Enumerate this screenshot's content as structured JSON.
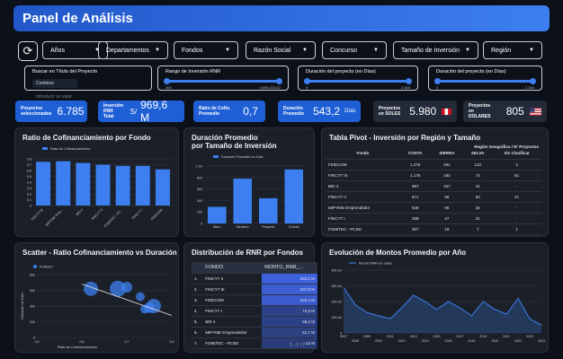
{
  "header": {
    "title": "Panel de Análisis"
  },
  "filters": {
    "dropdowns": [
      "Años",
      "Departamentos",
      "Fondos",
      "Razón Social",
      "Concurso",
      "Tamaño de Inversión",
      "Región"
    ]
  },
  "search": {
    "label": "Buscar en Título del Proyecto",
    "mode": "Contiene",
    "placeholder": "Introducir un valor"
  },
  "ranges": [
    {
      "label": "Rango de Inversión RNR",
      "min": "200",
      "max": "4.866.023,62"
    },
    {
      "label": "Duración del proyecto (en Días)",
      "min": "0",
      "max": "2.340"
    },
    {
      "label": "Duración del proyecto (en Días)",
      "min": "0",
      "max": "2.340"
    }
  ],
  "kpis": [
    {
      "label1": "Proyectos",
      "label2": "seleccionados",
      "value": "6.785"
    },
    {
      "label1": "Inversión",
      "label2": "RNR Total",
      "prefix": "S/",
      "value": "969,6 M"
    },
    {
      "label1": "Ratio de Cofin.",
      "label2": "Promedio",
      "value": "0,7"
    },
    {
      "label1": "Duración",
      "label2": "Promedio",
      "value": "543,2",
      "suffix": "Días"
    },
    {
      "label1": "Proyectos",
      "label2": "en SOLES",
      "value": "5.980"
    },
    {
      "label1": "Proyectos en",
      "label2": "DOLARES",
      "value": "805"
    }
  ],
  "panels": {
    "ratio": {
      "title": "Ratio de Cofinanciamiento por Fondo",
      "legend": "Ratio de Cofinanciamiento"
    },
    "duracion": {
      "title1": "Duración Promedio",
      "title2": "por Tamaño de Inversión",
      "legend": "Duración Promedio en Días"
    },
    "pivot": {
      "title": "Tabla Pivot - Inversión por Región y Tamaño",
      "subheader": "Región Geográfica / Nº Proyectos"
    },
    "scatter": {
      "title": "Scatter - Ratio Cofinanciamiento vs Duración",
      "legend": "FONDO"
    },
    "rnr": {
      "title": "Distribución de RNR por Fondos",
      "pager": "1 - 7 / 7"
    },
    "evolucion": {
      "title": "Evolución de Montos Promedio por Año",
      "legend": "Monto RNR en soles"
    }
  },
  "pivot_table": {
    "columns": [
      "Fondo",
      "COSTA",
      "SIERRA",
      "SELVA",
      "Sin Clasificar"
    ],
    "rows": [
      [
        "FEIECOM",
        "1.276",
        "191",
        "122",
        "2"
      ],
      [
        "FINCYT III",
        "1.176",
        "192",
        "74",
        "81"
      ],
      [
        "BID 4",
        "967",
        "167",
        "41",
        "-"
      ],
      [
        "FINCYT II",
        "671",
        "68",
        "63",
        "21"
      ],
      [
        "MIPYME Emprendedor",
        "549",
        "96",
        "26",
        "-"
      ],
      [
        "FINCYT I",
        "209",
        "27",
        "21",
        "-"
      ],
      [
        "FOMITEC - PCSD",
        "307",
        "18",
        "7",
        "1"
      ]
    ]
  },
  "rnr_table": {
    "columns": [
      "FONDO",
      "MONTO_RNR_..."
    ],
    "rows": [
      [
        "1.",
        "FINCYT II",
        "253,2 M",
        1.0
      ],
      [
        "2.",
        "FINCYT III",
        "237,5 M",
        0.94
      ],
      [
        "3.",
        "FEIECOM",
        "222,4 M",
        0.88
      ],
      [
        "4.",
        "FINCYT I",
        "74,2 M",
        0.29
      ],
      [
        "5.",
        "BID 4",
        "68,2 M",
        0.27
      ],
      [
        "6.",
        "MIPYME Emprendedor",
        "61,7 M",
        0.24
      ],
      [
        "7.",
        "FOMITEC - PCSD",
        "42 M",
        0.17
      ]
    ]
  },
  "chart_data": [
    {
      "type": "bar",
      "title": "Ratio de Cofinanciamiento por Fondo",
      "categories": [
        "FINCYT III",
        "MIPYME Emp...",
        "BID 4",
        "FINCYT II",
        "FOMITEC - PC...",
        "FINCYT I",
        "FEIECOM"
      ],
      "series": [
        {
          "name": "Ratio de Cofinanciamiento",
          "values": [
            0.75,
            0.76,
            0.73,
            0.7,
            0.68,
            0.68,
            0.62
          ]
        }
      ],
      "ylim": [
        0,
        0.8
      ],
      "yticks": [
        "0",
        "0,1",
        "0,2",
        "0,3",
        "0,4",
        "0,5",
        "0,6",
        "0,7",
        "0,8"
      ]
    },
    {
      "type": "bar",
      "title": "Duración Promedio por Tamaño de Inversión",
      "categories": [
        "Micro",
        "Mediano",
        "Pequeño",
        "Grande"
      ],
      "series": [
        {
          "name": "Duración Promedio en Días",
          "values": [
            290,
            780,
            440,
            940
          ]
        }
      ],
      "ylim": [
        0,
        1000
      ],
      "yticks": [
        "0",
        "200",
        "400",
        "600",
        "800",
        "1 mil"
      ]
    },
    {
      "type": "scatter",
      "title": "Scatter - Ratio Cofinanciamiento vs Duración",
      "xlabel": "Ratio de Cofinanciamiento",
      "ylabel": "Duración en Días",
      "xlim": [
        0.5,
        0.8
      ],
      "ylim": [
        0,
        800
      ],
      "xticks": [
        "0,5",
        "0,6",
        "0,7",
        "0,8"
      ],
      "yticks": [
        "0",
        "200",
        "400",
        "600",
        "800"
      ],
      "points": [
        {
          "x": 0.62,
          "y": 620,
          "r": 8
        },
        {
          "x": 0.68,
          "y": 620,
          "r": 9
        },
        {
          "x": 0.7,
          "y": 640,
          "r": 6
        },
        {
          "x": 0.73,
          "y": 520,
          "r": 5
        },
        {
          "x": 0.75,
          "y": 380,
          "r": 6
        },
        {
          "x": 0.76,
          "y": 400,
          "r": 8
        },
        {
          "x": 0.74,
          "y": 360,
          "r": 5
        }
      ],
      "trend": [
        [
          0.6,
          680
        ],
        [
          0.8,
          280
        ]
      ]
    },
    {
      "type": "area",
      "title": "Evolución de Montos Promedio por Año",
      "series": [
        {
          "name": "Monto RNR en soles",
          "values": [
            290,
            180,
            130,
            110,
            90,
            160,
            240,
            200,
            150,
            200,
            160,
            110,
            200,
            150,
            120,
            220,
            90,
            50
          ]
        }
      ],
      "x": [
        "2007",
        "2008",
        "2009",
        "2010",
        "2011",
        "2012",
        "2013",
        "2014",
        "2015",
        "2016",
        "2017",
        "2018",
        "2019",
        "2020",
        "2021",
        "2022",
        "2023",
        "2024"
      ],
      "ylim": [
        0,
        400
      ],
      "yticks": [
        "0",
        "100 mil",
        "200 mil",
        "300 mil",
        "400 mil"
      ]
    }
  ]
}
